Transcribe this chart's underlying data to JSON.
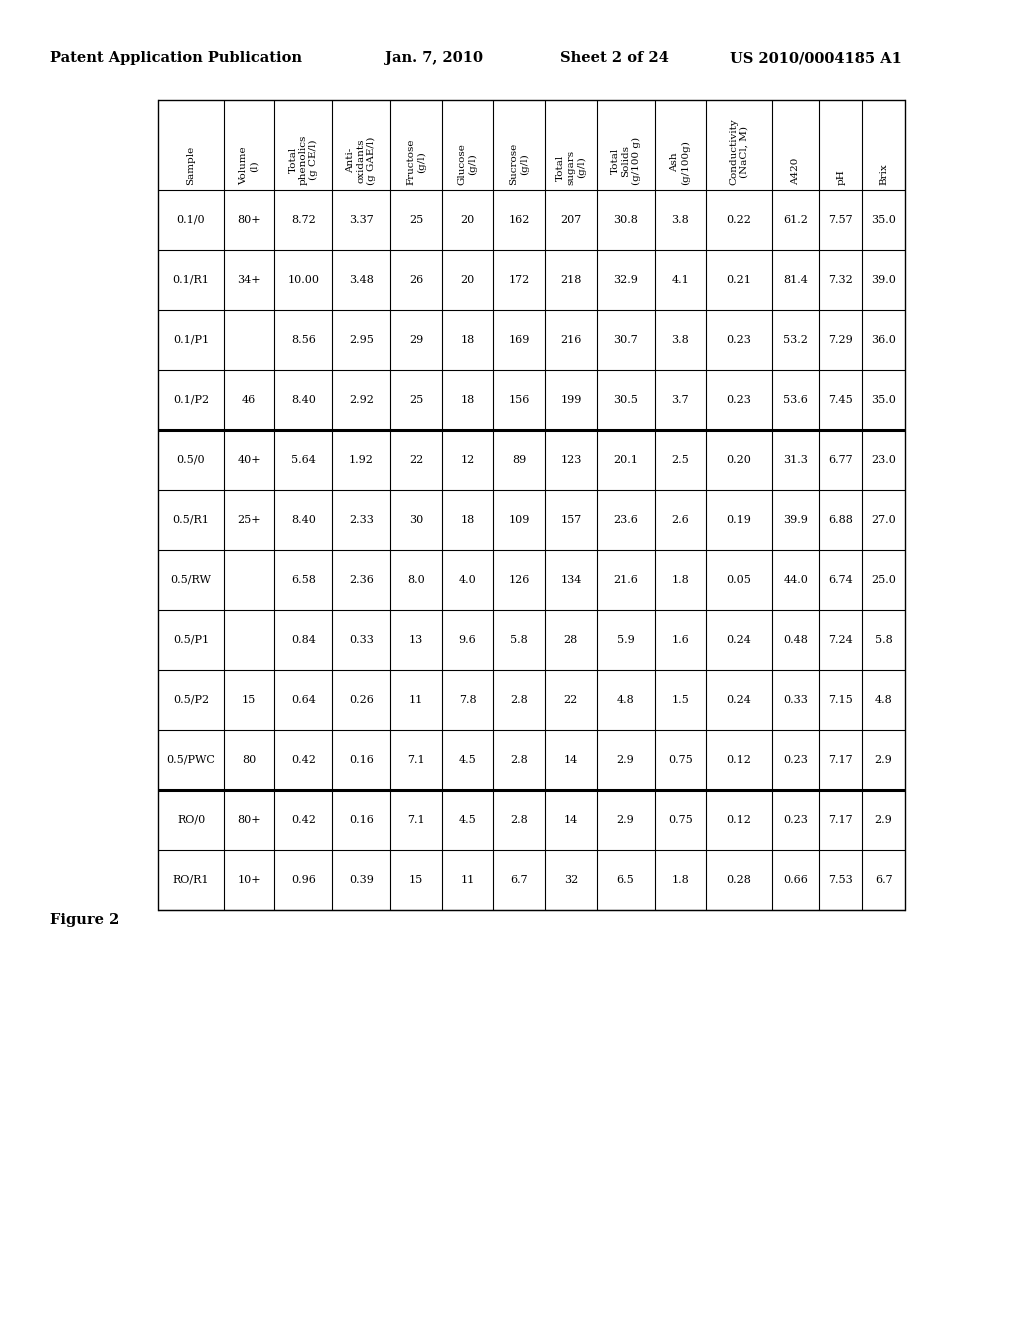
{
  "header_line1": [
    "Patent Application Publication",
    "Jan. 7, 2010",
    "Sheet 2 of 24",
    "US 2010/0004185 A1"
  ],
  "figure_label": "Figure 2",
  "col_headers_line1": [
    "Sample",
    "Volume",
    "Total",
    "Anti-",
    "Fructose",
    "Glucose",
    "Sucrose",
    "Total",
    "Total",
    "Ash",
    "Conductivity",
    "A420",
    "pH",
    "Brix"
  ],
  "col_headers_line2": [
    "",
    "(l)",
    "phenolics",
    "oxidants",
    "(g/l)",
    "(g/l)",
    "(g/l)",
    "sugars",
    "Solids",
    "(g/100g)",
    "(NaCl, M)",
    "",
    "",
    ""
  ],
  "col_headers_line3": [
    "",
    "",
    "(g CE/l)",
    "(g GAE/l)",
    "",
    "",
    "",
    "(g/l)",
    "(g/100 g)",
    "",
    "",
    "",
    "",
    ""
  ],
  "rows": [
    [
      "0.1/0",
      "80+",
      "8.72",
      "3.37",
      "25",
      "20",
      "162",
      "207",
      "30.8",
      "3.8",
      "0.22",
      "61.2",
      "7.57",
      "35.0"
    ],
    [
      "0.1/R1",
      "34+",
      "10.00",
      "3.48",
      "26",
      "20",
      "172",
      "218",
      "32.9",
      "4.1",
      "0.21",
      "81.4",
      "7.32",
      "39.0"
    ],
    [
      "0.1/P1",
      "",
      "8.56",
      "2.95",
      "29",
      "18",
      "169",
      "216",
      "30.7",
      "3.8",
      "0.23",
      "53.2",
      "7.29",
      "36.0"
    ],
    [
      "0.1/P2",
      "46",
      "8.40",
      "2.92",
      "25",
      "18",
      "156",
      "199",
      "30.5",
      "3.7",
      "0.23",
      "53.6",
      "7.45",
      "35.0"
    ],
    [
      "0.5/0",
      "40+",
      "5.64",
      "1.92",
      "22",
      "12",
      "89",
      "123",
      "20.1",
      "2.5",
      "0.20",
      "31.3",
      "6.77",
      "23.0"
    ],
    [
      "0.5/R1",
      "25+",
      "8.40",
      "2.33",
      "30",
      "18",
      "109",
      "157",
      "23.6",
      "2.6",
      "0.19",
      "39.9",
      "6.88",
      "27.0"
    ],
    [
      "0.5/RW",
      "",
      "6.58",
      "2.36",
      "8.0",
      "4.0",
      "126",
      "134",
      "21.6",
      "1.8",
      "0.05",
      "44.0",
      "6.74",
      "25.0"
    ],
    [
      "0.5/P1",
      "",
      "0.84",
      "0.33",
      "13",
      "9.6",
      "5.8",
      "28",
      "5.9",
      "1.6",
      "0.24",
      "0.48",
      "7.24",
      "5.8"
    ],
    [
      "0.5/P2",
      "15",
      "0.64",
      "0.26",
      "11",
      "7.8",
      "2.8",
      "22",
      "4.8",
      "1.5",
      "0.24",
      "0.33",
      "7.15",
      "4.8"
    ],
    [
      "0.5/PWC",
      "80",
      "0.42",
      "0.16",
      "7.1",
      "4.5",
      "2.8",
      "14",
      "2.9",
      "0.75",
      "0.12",
      "0.23",
      "7.17",
      "2.9"
    ],
    [
      "RO/0",
      "80+",
      "0.42",
      "0.16",
      "7.1",
      "4.5",
      "2.8",
      "14",
      "2.9",
      "0.75",
      "0.12",
      "0.23",
      "7.17",
      "2.9"
    ],
    [
      "RO/R1",
      "10+",
      "0.96",
      "0.39",
      "15",
      "11",
      "6.7",
      "32",
      "6.5",
      "1.8",
      "0.28",
      "0.66",
      "7.53",
      "6.7"
    ]
  ],
  "separator_after_rows": [
    3,
    9
  ],
  "background_color": "#ffffff",
  "text_color": "#000000"
}
